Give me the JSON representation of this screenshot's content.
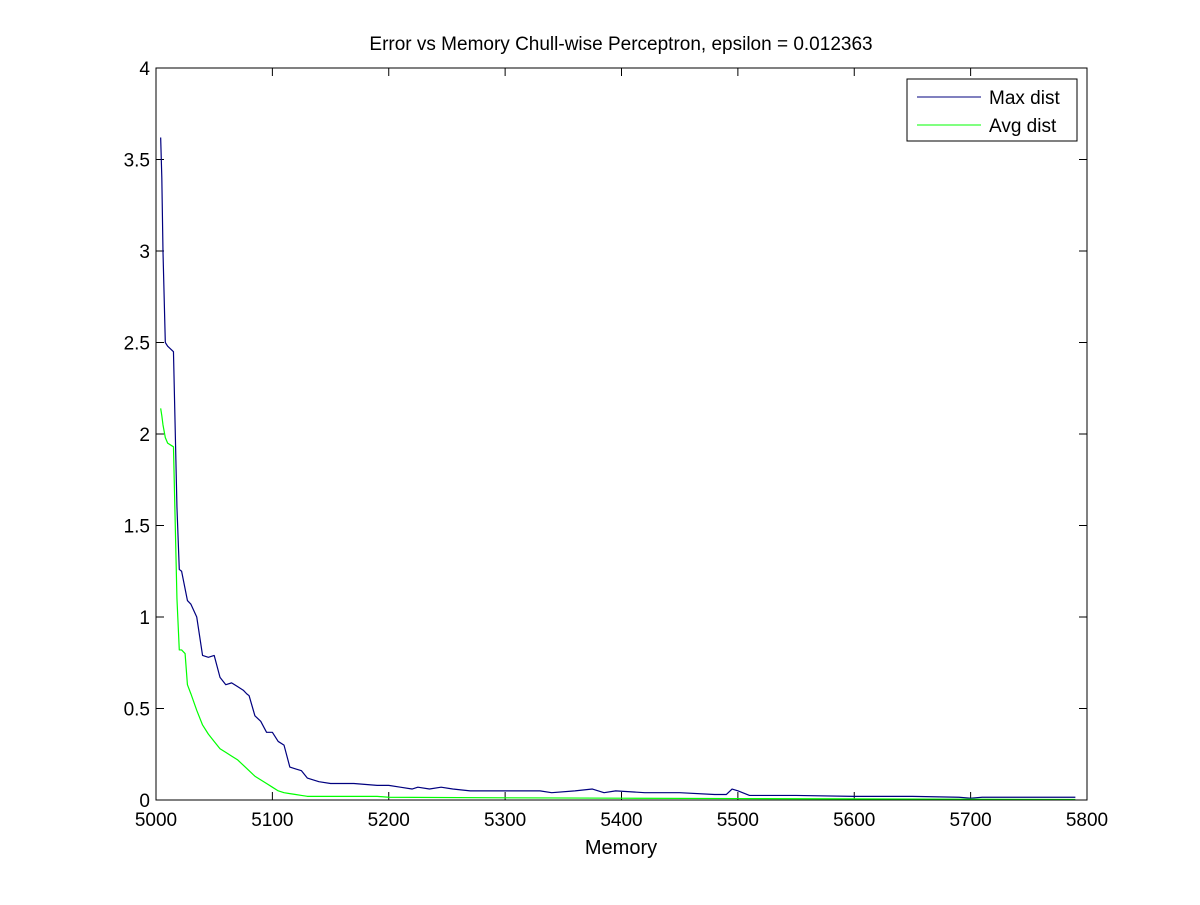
{
  "chart_data": {
    "type": "line",
    "title": "Error vs Memory Chull-wise Perceptron, epsilon = 0.012363",
    "xlabel": "Memory",
    "ylabel": "",
    "xlim": [
      5000,
      5800
    ],
    "ylim": [
      0,
      4
    ],
    "xticks": [
      5000,
      5100,
      5200,
      5300,
      5400,
      5500,
      5600,
      5700,
      5800
    ],
    "yticks": [
      0,
      0.5,
      1,
      1.5,
      2,
      2.5,
      3,
      3.5,
      4
    ],
    "xtick_labels": [
      "5000",
      "5100",
      "5200",
      "5300",
      "5400",
      "5500",
      "5600",
      "5700",
      "5800"
    ],
    "ytick_labels": [
      "0",
      "0.5",
      "1",
      "1.5",
      "2",
      "2.5",
      "3",
      "3.5",
      "4"
    ],
    "grid": false,
    "legend_position": "top-right",
    "series": [
      {
        "name": "Max dist",
        "color": "#00007f",
        "x": [
          5004,
          5005,
          5006,
          5008,
          5010,
          5015,
          5018,
          5020,
          5022,
          5027,
          5030,
          5035,
          5040,
          5045,
          5050,
          5055,
          5060,
          5065,
          5070,
          5075,
          5078,
          5080,
          5085,
          5090,
          5095,
          5100,
          5105,
          5110,
          5115,
          5120,
          5125,
          5130,
          5140,
          5150,
          5170,
          5190,
          5200,
          5210,
          5220,
          5225,
          5235,
          5245,
          5255,
          5270,
          5290,
          5310,
          5330,
          5340,
          5360,
          5375,
          5385,
          5395,
          5420,
          5450,
          5480,
          5490,
          5495,
          5500,
          5510,
          5520,
          5550,
          5600,
          5650,
          5690,
          5700,
          5710,
          5750,
          5790
        ],
        "values": [
          3.62,
          3.4,
          3.0,
          2.5,
          2.48,
          2.45,
          1.6,
          1.26,
          1.25,
          1.09,
          1.07,
          1.0,
          0.79,
          0.78,
          0.79,
          0.67,
          0.63,
          0.64,
          0.62,
          0.6,
          0.58,
          0.57,
          0.46,
          0.43,
          0.37,
          0.37,
          0.32,
          0.3,
          0.18,
          0.17,
          0.16,
          0.12,
          0.1,
          0.09,
          0.09,
          0.08,
          0.08,
          0.07,
          0.06,
          0.07,
          0.06,
          0.07,
          0.06,
          0.05,
          0.05,
          0.05,
          0.05,
          0.04,
          0.05,
          0.06,
          0.04,
          0.05,
          0.04,
          0.04,
          0.03,
          0.03,
          0.06,
          0.05,
          0.025,
          0.025,
          0.025,
          0.02,
          0.02,
          0.015,
          0.01,
          0.015,
          0.015,
          0.015
        ]
      },
      {
        "name": "Avg dist",
        "color": "#00ff00",
        "x": [
          5004,
          5005,
          5006,
          5008,
          5010,
          5015,
          5018,
          5020,
          5022,
          5025,
          5027,
          5030,
          5035,
          5040,
          5045,
          5050,
          5055,
          5060,
          5065,
          5070,
          5075,
          5080,
          5085,
          5090,
          5095,
          5100,
          5105,
          5110,
          5115,
          5120,
          5125,
          5130,
          5140,
          5160,
          5190,
          5200,
          5300,
          5400,
          5500,
          5600,
          5700,
          5790
        ],
        "values": [
          2.14,
          2.1,
          2.05,
          1.98,
          1.95,
          1.93,
          1.1,
          0.82,
          0.82,
          0.8,
          0.63,
          0.58,
          0.49,
          0.41,
          0.36,
          0.32,
          0.28,
          0.26,
          0.24,
          0.22,
          0.19,
          0.16,
          0.13,
          0.11,
          0.09,
          0.07,
          0.05,
          0.04,
          0.035,
          0.03,
          0.025,
          0.02,
          0.02,
          0.02,
          0.02,
          0.015,
          0.012,
          0.01,
          0.008,
          0.006,
          0.004,
          0.003
        ]
      }
    ]
  }
}
